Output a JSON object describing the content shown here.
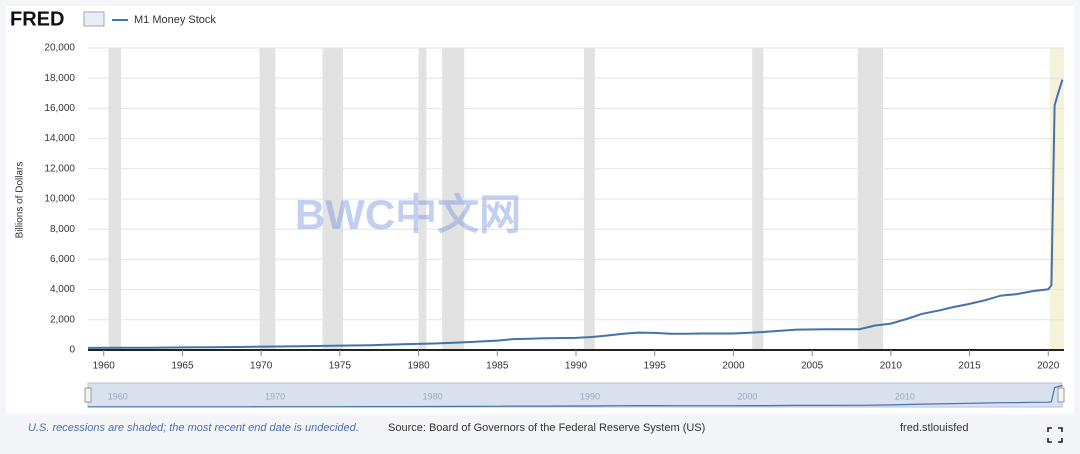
{
  "header": {
    "logo": "FRED"
  },
  "chart_data": {
    "type": "line",
    "y_label": "Billions of Dollars",
    "x": [
      1959,
      1961,
      1963,
      1965,
      1967,
      1969,
      1971,
      1973,
      1975,
      1977,
      1979,
      1981,
      1983,
      1985,
      1986,
      1987,
      1988,
      1990,
      1991,
      1992,
      1993,
      1994,
      1995,
      1996,
      1997,
      1998,
      2000,
      2001,
      2002,
      2004,
      2006,
      2008,
      2009,
      2010,
      2011,
      2012,
      2013,
      2014,
      2015,
      2016,
      2017,
      2018,
      2019,
      2020,
      2020.2,
      2020.4,
      2020.6,
      2020.9
    ],
    "series": [
      {
        "name": "M1 Money Stock",
        "color": "#4572a7",
        "values": [
          140,
          145,
          155,
          170,
          185,
          205,
          230,
          260,
          290,
          320,
          375,
          430,
          510,
          620,
          720,
          750,
          780,
          800,
          860,
          960,
          1080,
          1150,
          1130,
          1080,
          1070,
          1090,
          1090,
          1140,
          1200,
          1350,
          1370,
          1380,
          1620,
          1750,
          2050,
          2400,
          2600,
          2850,
          3050,
          3300,
          3600,
          3700,
          3900,
          4020,
          4300,
          16200,
          16900,
          17900
        ]
      }
    ],
    "xlim": [
      1959,
      2021
    ],
    "ylim": [
      0,
      20000
    ],
    "xticks": [
      1960,
      1965,
      1970,
      1975,
      1980,
      1985,
      1990,
      1995,
      2000,
      2005,
      2010,
      2015,
      2020
    ],
    "yticks": [
      0,
      {
        "value": 2000,
        "label": "2,000"
      },
      {
        "value": 4000,
        "label": "4,000"
      },
      {
        "value": 6000,
        "label": "6,000"
      },
      {
        "value": 8000,
        "label": "8,000"
      },
      {
        "value": 10000,
        "label": "10,000"
      },
      {
        "value": 12000,
        "label": "12,000"
      },
      {
        "value": 14000,
        "label": "14,000"
      },
      {
        "value": 16000,
        "label": "16,000"
      },
      {
        "value": 18000,
        "label": "18,000"
      },
      {
        "value": 20000,
        "label": "20,000"
      }
    ],
    "grid": true,
    "recessions": [
      [
        1960.3,
        1961.1
      ],
      [
        1969.9,
        1970.9
      ],
      [
        1973.9,
        1975.2
      ],
      [
        1980.0,
        1980.5
      ],
      [
        1981.5,
        1982.9
      ],
      [
        1990.5,
        1991.2
      ],
      [
        2001.2,
        2001.9
      ],
      [
        2007.9,
        2009.5
      ]
    ],
    "recession_color": "#e2e2e2",
    "undecided_recession": [
      2020.1,
      2021
    ],
    "undecided_color": "#f6f1d9",
    "navigator_ticks": [
      1960,
      1970,
      1980,
      1990,
      2000,
      2010
    ],
    "watermark": "BWC中文网",
    "footnote": "U.S. recessions are shaded; the most recent end date is undecided.",
    "source": "Source: Board of Governors of the Federal Reserve System (US)",
    "link": "fred.stlouisfed"
  }
}
